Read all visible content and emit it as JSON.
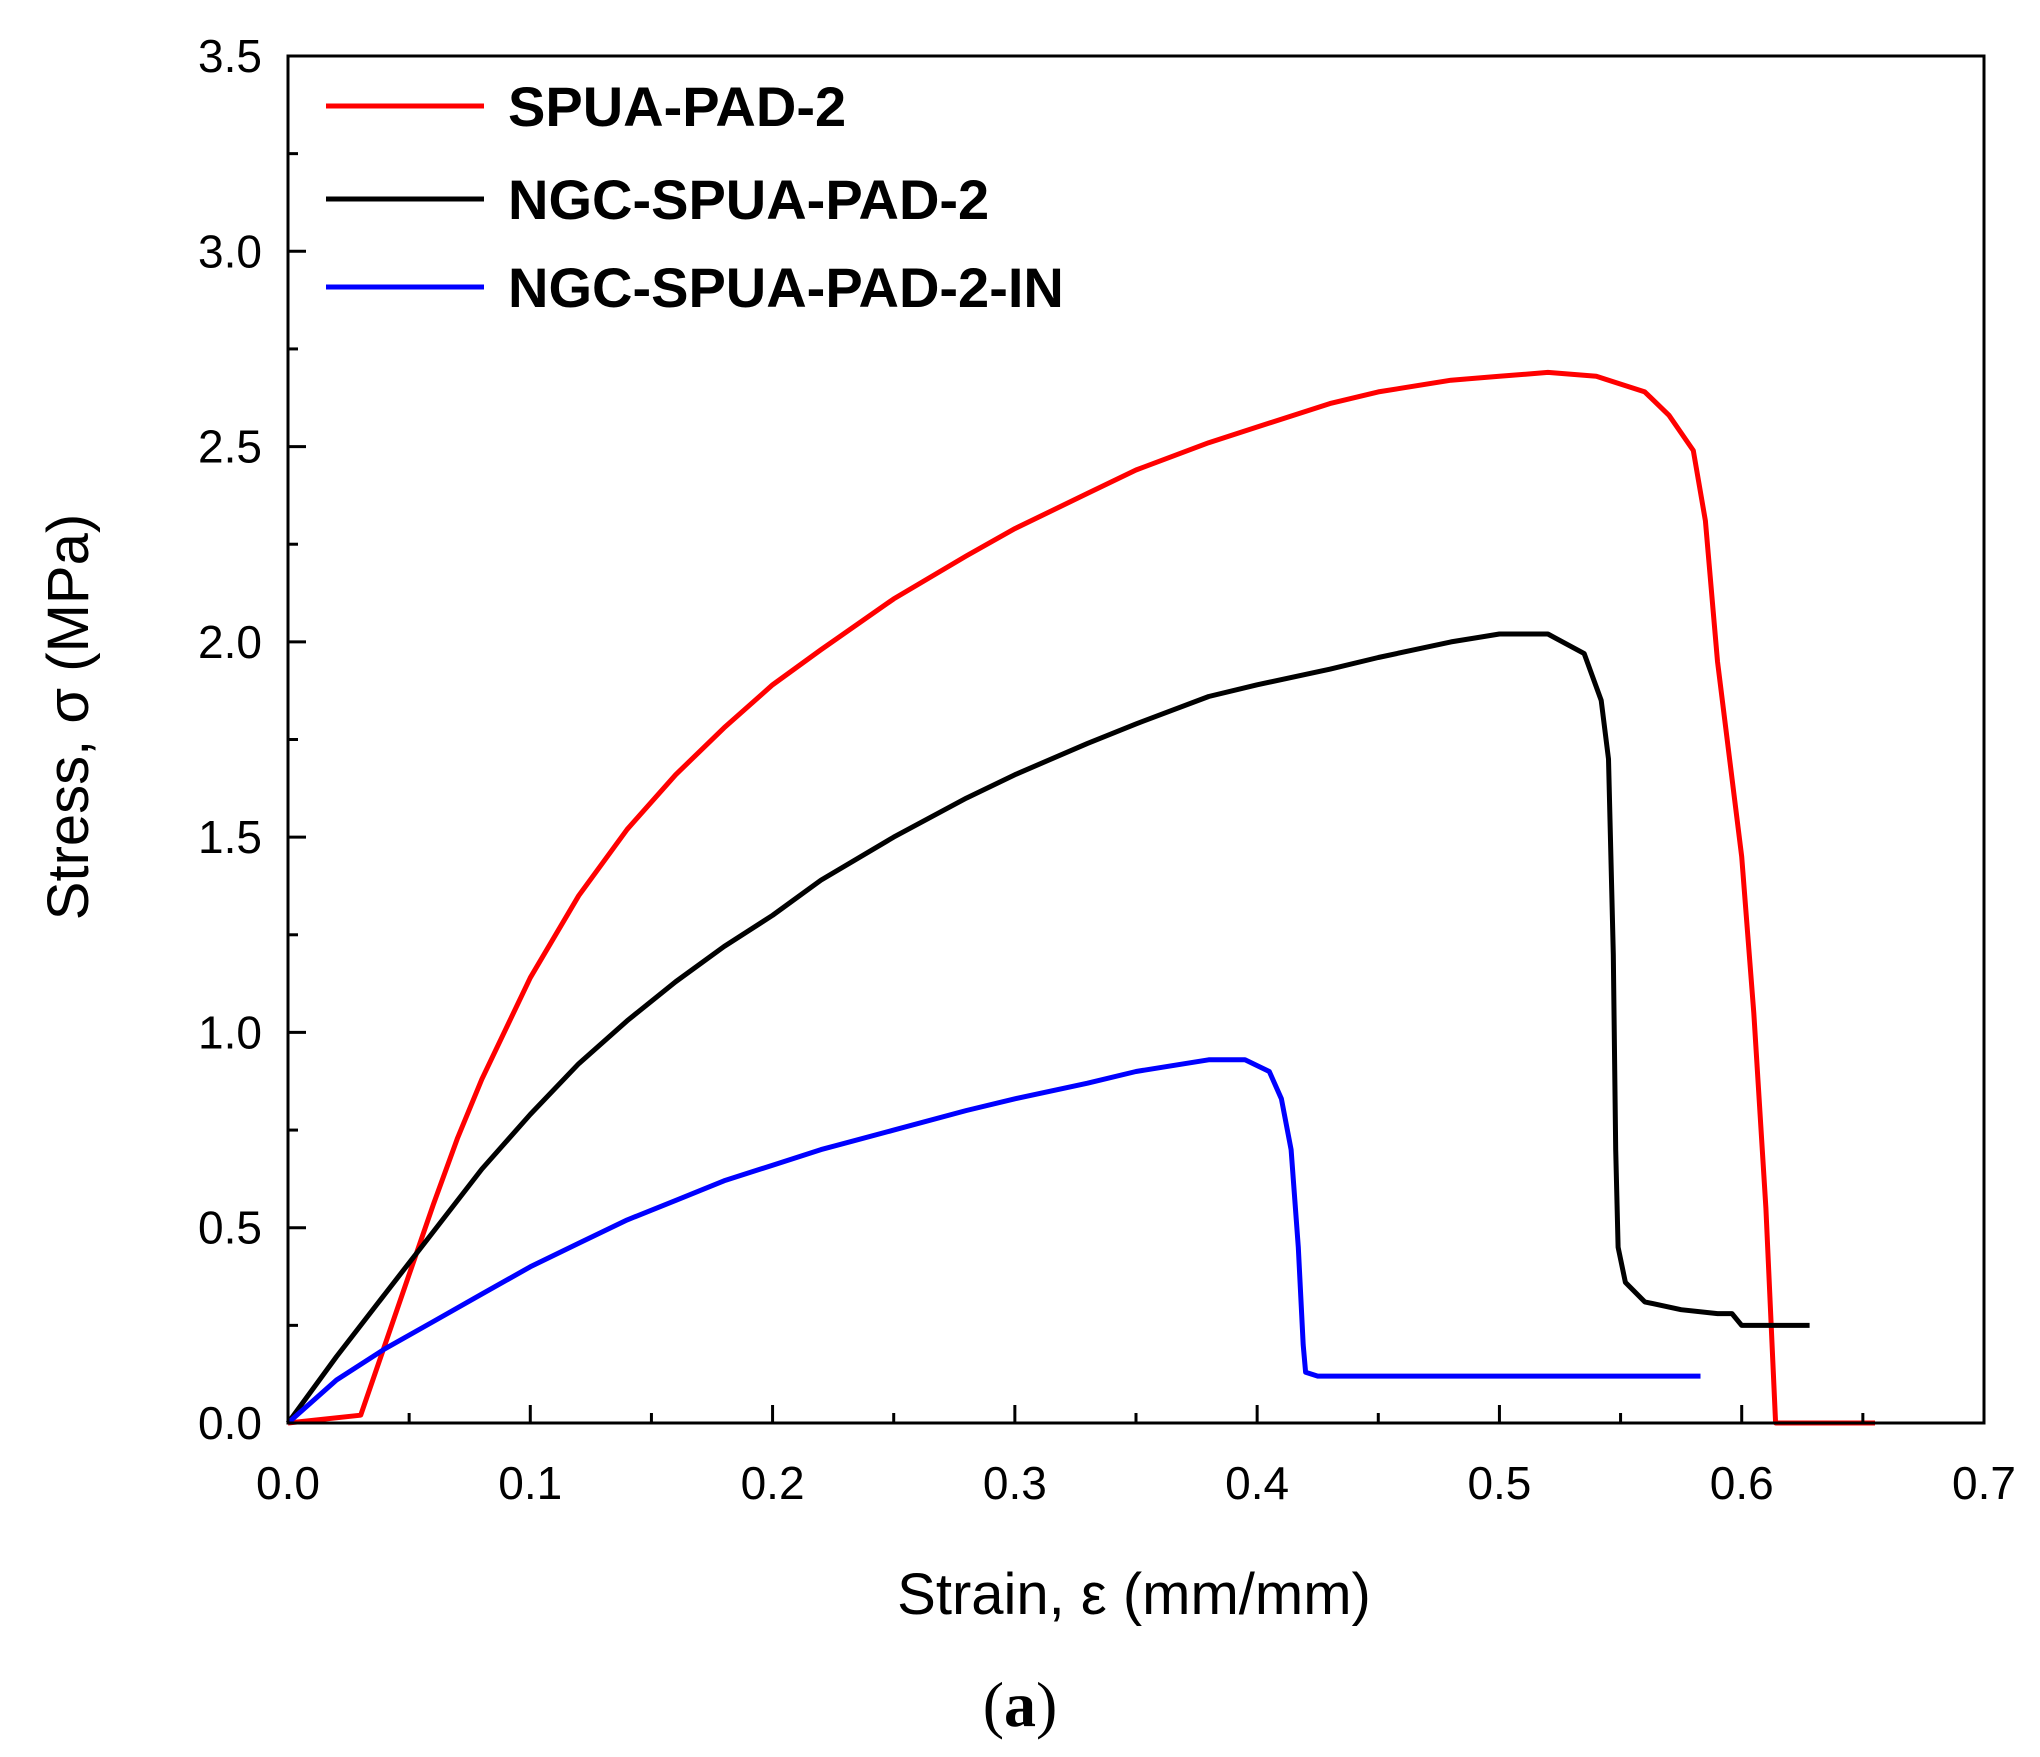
{
  "chart_data": {
    "type": "line",
    "title": "",
    "xlabel": "Strain, ε (mm/mm)",
    "ylabel": "Stress, σ (MPa)",
    "xlim": [
      0,
      0.7
    ],
    "ylim": [
      0,
      3.5
    ],
    "x_ticks": [
      "0.0",
      "0.1",
      "0.2",
      "0.3",
      "0.4",
      "0.5",
      "0.6",
      "0.7"
    ],
    "y_ticks": [
      "0.0",
      "0.5",
      "1.0",
      "1.5",
      "2.0",
      "2.5",
      "3.0",
      "3.5"
    ],
    "grid": false,
    "legend_position": "top-left",
    "panel_label": {
      "open": "(",
      "letter": "a",
      "close": ")"
    },
    "series": [
      {
        "name": "SPUA-PAD-2",
        "color": "#ff0000",
        "points": [
          [
            0.0,
            0.0
          ],
          [
            0.03,
            0.02
          ],
          [
            0.04,
            0.2
          ],
          [
            0.05,
            0.38
          ],
          [
            0.06,
            0.56
          ],
          [
            0.07,
            0.73
          ],
          [
            0.08,
            0.88
          ],
          [
            0.1,
            1.14
          ],
          [
            0.12,
            1.35
          ],
          [
            0.14,
            1.52
          ],
          [
            0.16,
            1.66
          ],
          [
            0.18,
            1.78
          ],
          [
            0.2,
            1.89
          ],
          [
            0.22,
            1.98
          ],
          [
            0.25,
            2.11
          ],
          [
            0.28,
            2.22
          ],
          [
            0.3,
            2.29
          ],
          [
            0.33,
            2.38
          ],
          [
            0.35,
            2.44
          ],
          [
            0.38,
            2.51
          ],
          [
            0.4,
            2.55
          ],
          [
            0.43,
            2.61
          ],
          [
            0.45,
            2.64
          ],
          [
            0.48,
            2.67
          ],
          [
            0.5,
            2.68
          ],
          [
            0.52,
            2.69
          ],
          [
            0.54,
            2.68
          ],
          [
            0.56,
            2.64
          ],
          [
            0.57,
            2.58
          ],
          [
            0.58,
            2.49
          ],
          [
            0.585,
            2.31
          ],
          [
            0.59,
            1.95
          ],
          [
            0.6,
            1.45
          ],
          [
            0.605,
            1.05
          ],
          [
            0.61,
            0.55
          ],
          [
            0.614,
            0.0
          ],
          [
            0.655,
            0.0
          ]
        ]
      },
      {
        "name": "NGC-SPUA-PAD-2",
        "color": "#000000",
        "points": [
          [
            0.0,
            0.0
          ],
          [
            0.02,
            0.17
          ],
          [
            0.04,
            0.33
          ],
          [
            0.06,
            0.49
          ],
          [
            0.08,
            0.65
          ],
          [
            0.1,
            0.79
          ],
          [
            0.12,
            0.92
          ],
          [
            0.14,
            1.03
          ],
          [
            0.16,
            1.13
          ],
          [
            0.18,
            1.22
          ],
          [
            0.2,
            1.3
          ],
          [
            0.22,
            1.39
          ],
          [
            0.25,
            1.5
          ],
          [
            0.28,
            1.6
          ],
          [
            0.3,
            1.66
          ],
          [
            0.33,
            1.74
          ],
          [
            0.35,
            1.79
          ],
          [
            0.38,
            1.86
          ],
          [
            0.4,
            1.89
          ],
          [
            0.43,
            1.93
          ],
          [
            0.45,
            1.96
          ],
          [
            0.48,
            2.0
          ],
          [
            0.5,
            2.02
          ],
          [
            0.52,
            2.02
          ],
          [
            0.535,
            1.97
          ],
          [
            0.542,
            1.85
          ],
          [
            0.545,
            1.7
          ],
          [
            0.547,
            1.2
          ],
          [
            0.548,
            0.7
          ],
          [
            0.549,
            0.45
          ],
          [
            0.552,
            0.36
          ],
          [
            0.56,
            0.31
          ],
          [
            0.575,
            0.29
          ],
          [
            0.59,
            0.28
          ],
          [
            0.596,
            0.28
          ],
          [
            0.6,
            0.25
          ],
          [
            0.628,
            0.25
          ]
        ]
      },
      {
        "name": "NGC-SPUA-PAD-2-IN",
        "color": "#0000ff",
        "points": [
          [
            0.0,
            0.0
          ],
          [
            0.02,
            0.11
          ],
          [
            0.04,
            0.19
          ],
          [
            0.06,
            0.26
          ],
          [
            0.08,
            0.33
          ],
          [
            0.1,
            0.4
          ],
          [
            0.12,
            0.46
          ],
          [
            0.14,
            0.52
          ],
          [
            0.16,
            0.57
          ],
          [
            0.18,
            0.62
          ],
          [
            0.2,
            0.66
          ],
          [
            0.22,
            0.7
          ],
          [
            0.25,
            0.75
          ],
          [
            0.28,
            0.8
          ],
          [
            0.3,
            0.83
          ],
          [
            0.33,
            0.87
          ],
          [
            0.35,
            0.9
          ],
          [
            0.37,
            0.92
          ],
          [
            0.38,
            0.93
          ],
          [
            0.395,
            0.93
          ],
          [
            0.405,
            0.9
          ],
          [
            0.41,
            0.83
          ],
          [
            0.414,
            0.7
          ],
          [
            0.417,
            0.45
          ],
          [
            0.419,
            0.2
          ],
          [
            0.42,
            0.13
          ],
          [
            0.425,
            0.12
          ],
          [
            0.45,
            0.12
          ],
          [
            0.5,
            0.12
          ],
          [
            0.55,
            0.12
          ],
          [
            0.583,
            0.12
          ]
        ]
      }
    ]
  }
}
